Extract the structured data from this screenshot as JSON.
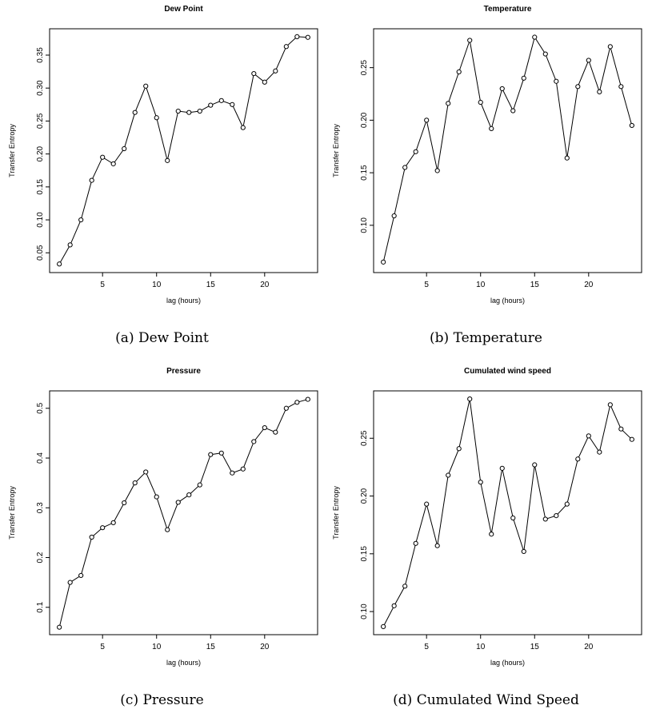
{
  "chart_data": [
    {
      "type": "line",
      "title": "Dew Point",
      "xlabel": "lag (hours)",
      "ylabel": "Transfer Entropy",
      "caption": "(a)  Dew Point",
      "x": [
        1,
        2,
        3,
        4,
        5,
        6,
        7,
        8,
        9,
        10,
        11,
        12,
        13,
        14,
        15,
        16,
        17,
        18,
        19,
        20,
        21,
        22,
        23,
        24
      ],
      "series": [
        {
          "values": [
            0.033,
            0.062,
            0.1,
            0.16,
            0.195,
            0.185,
            0.208,
            0.263,
            0.303,
            0.255,
            0.19,
            0.265,
            0.263,
            0.265,
            0.274,
            0.281,
            0.275,
            0.24,
            0.322,
            0.309,
            0.326,
            0.363,
            0.378,
            0.377
          ]
        }
      ],
      "xlim": [
        0.1,
        24.9
      ],
      "ylim": [
        0.02,
        0.39
      ],
      "xticks": [
        5,
        10,
        15,
        20
      ],
      "yticks": [
        0.05,
        0.1,
        0.15,
        0.2,
        0.25,
        0.3,
        0.35
      ],
      "ytick_labels": [
        "0.05",
        "0.10",
        "0.15",
        "0.20",
        "0.25",
        "0.30",
        "0.35"
      ],
      "grid": false,
      "marker": "open-circle"
    },
    {
      "type": "line",
      "title": "Temperature",
      "xlabel": "lag (hours)",
      "ylabel": "Transfer Entropy",
      "caption": "(b)  Temperature",
      "x": [
        1,
        2,
        3,
        4,
        5,
        6,
        7,
        8,
        9,
        10,
        11,
        12,
        13,
        14,
        15,
        16,
        17,
        18,
        19,
        20,
        21,
        22,
        23,
        24
      ],
      "series": [
        {
          "values": [
            0.065,
            0.109,
            0.155,
            0.17,
            0.2,
            0.152,
            0.216,
            0.246,
            0.276,
            0.217,
            0.192,
            0.23,
            0.209,
            0.24,
            0.279,
            0.263,
            0.237,
            0.164,
            0.232,
            0.257,
            0.227,
            0.27,
            0.232,
            0.195
          ]
        }
      ],
      "xlim": [
        0.1,
        24.9
      ],
      "ylim": [
        0.055,
        0.287
      ],
      "xticks": [
        5,
        10,
        15,
        20
      ],
      "yticks": [
        0.1,
        0.15,
        0.2,
        0.25
      ],
      "ytick_labels": [
        "0.10",
        "0.15",
        "0.20",
        "0.25"
      ],
      "grid": false,
      "marker": "open-circle"
    },
    {
      "type": "line",
      "title": "Pressure",
      "xlabel": "lag (hours)",
      "ylabel": "Transfer Entropy",
      "caption": "(c)  Pressure",
      "x": [
        1,
        2,
        3,
        4,
        5,
        6,
        7,
        8,
        9,
        10,
        11,
        12,
        13,
        14,
        15,
        16,
        17,
        18,
        19,
        20,
        21,
        22,
        23,
        24
      ],
      "series": [
        {
          "values": [
            0.06,
            0.15,
            0.164,
            0.241,
            0.26,
            0.27,
            0.31,
            0.35,
            0.372,
            0.322,
            0.256,
            0.311,
            0.326,
            0.346,
            0.407,
            0.41,
            0.37,
            0.378,
            0.433,
            0.461,
            0.452,
            0.5,
            0.512,
            0.518
          ]
        }
      ],
      "xlim": [
        0.1,
        24.9
      ],
      "ylim": [
        0.045,
        0.535
      ],
      "xticks": [
        5,
        10,
        15,
        20
      ],
      "yticks": [
        0.1,
        0.2,
        0.3,
        0.4,
        0.5
      ],
      "ytick_labels": [
        "0.1",
        "0.2",
        "0.3",
        "0.4",
        "0.5"
      ],
      "grid": false,
      "marker": "open-circle"
    },
    {
      "type": "line",
      "title": "Cumulated wind speed",
      "xlabel": "lag (hours)",
      "ylabel": "Transfer Entropy",
      "caption": "(d)  Cumulated Wind Speed",
      "x": [
        1,
        2,
        3,
        4,
        5,
        6,
        7,
        8,
        9,
        10,
        11,
        12,
        13,
        14,
        15,
        16,
        17,
        18,
        19,
        20,
        21,
        22,
        23,
        24
      ],
      "series": [
        {
          "values": [
            0.087,
            0.105,
            0.122,
            0.159,
            0.193,
            0.157,
            0.218,
            0.241,
            0.284,
            0.212,
            0.167,
            0.224,
            0.181,
            0.152,
            0.227,
            0.18,
            0.183,
            0.193,
            0.232,
            0.252,
            0.238,
            0.279,
            0.258,
            0.249
          ]
        }
      ],
      "xlim": [
        0.1,
        24.9
      ],
      "ylim": [
        0.08,
        0.291
      ],
      "xticks": [
        5,
        10,
        15,
        20
      ],
      "yticks": [
        0.1,
        0.15,
        0.2,
        0.25
      ],
      "ytick_labels": [
        "0.10",
        "0.15",
        "0.20",
        "0.25"
      ],
      "grid": false,
      "marker": "open-circle"
    }
  ]
}
